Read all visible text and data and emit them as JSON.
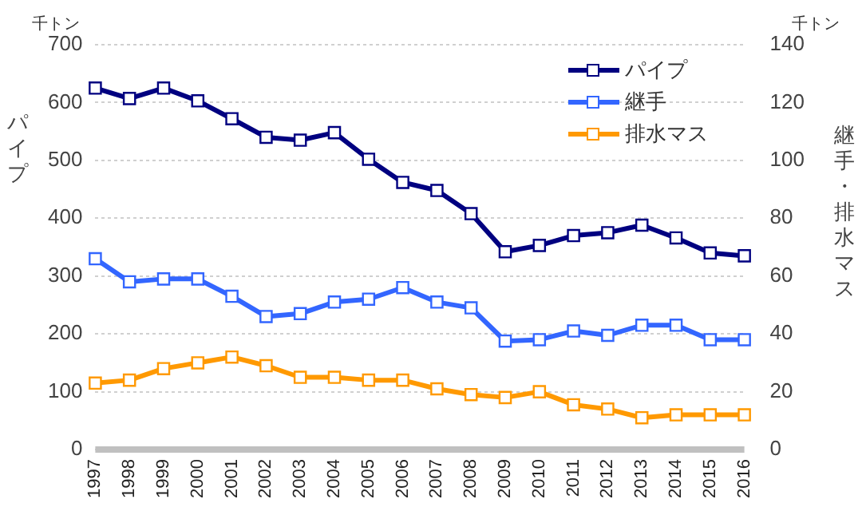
{
  "chart_data": {
    "type": "line",
    "ylabel": "パイプ",
    "y2label": "継手・排水マス",
    "annotations": [
      "千トン",
      "千トン"
    ],
    "categories": [
      "1997",
      "1998",
      "1999",
      "2000",
      "2001",
      "2002",
      "2003",
      "2004",
      "2005",
      "2006",
      "2007",
      "2008",
      "2009",
      "2010",
      "2011",
      "2012",
      "2013",
      "2014",
      "2015",
      "2016"
    ],
    "series": [
      {
        "name": "パイプ",
        "color": "#000080",
        "values": [
          625,
          607,
          625,
          603,
          572,
          540,
          535,
          548,
          502,
          462,
          448,
          408,
          342,
          353,
          370,
          375,
          388,
          366,
          340,
          335
        ]
      },
      {
        "name": "継手",
        "color": "#3366ff",
        "axis": "y2",
        "values": [
          66,
          58,
          59,
          59,
          53,
          46,
          47,
          51,
          52,
          56,
          51,
          49,
          37.5,
          38,
          41,
          39.5,
          43,
          43,
          38,
          38
        ]
      },
      {
        "name": "排水マス",
        "color": "#ff9900",
        "axis": "y2",
        "values": [
          23,
          24,
          28,
          30,
          32,
          29,
          25,
          25,
          24,
          24,
          21,
          19,
          18,
          20,
          15.5,
          14,
          11,
          12,
          12,
          12
        ]
      }
    ],
    "ylim": [
      0,
      700
    ],
    "yticks": [
      0,
      100,
      200,
      300,
      400,
      500,
      600,
      700
    ],
    "y2lim": [
      0,
      140
    ],
    "y2ticks": [
      0,
      20,
      40,
      60,
      80,
      100,
      120,
      140
    ],
    "grid": "y",
    "legend": "top right",
    "marker": "square",
    "line_style": "solid"
  }
}
